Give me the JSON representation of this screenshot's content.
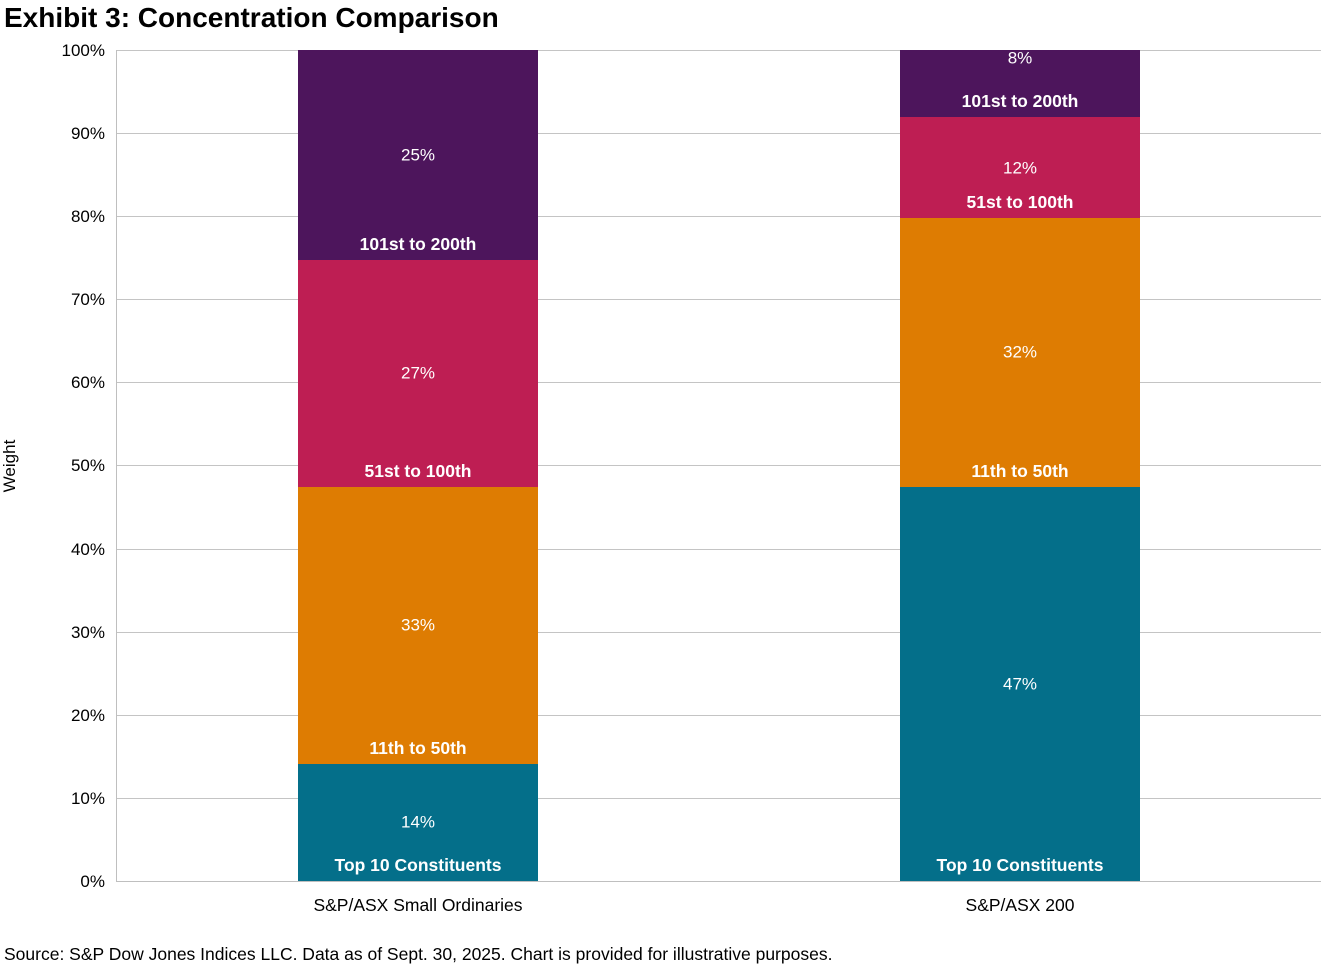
{
  "title": "Exhibit 3: Concentration Comparison",
  "source": "Source: S&P Dow Jones Indices LLC. Data as of Sept. 30, 2025. Chart is provided for illustrative purposes.",
  "chart_data": {
    "type": "bar",
    "stacked": true,
    "orientation": "vertical",
    "title": "Exhibit 3: Concentration Comparison",
    "xlabel": "",
    "ylabel": "Weight",
    "ylim": [
      0,
      100
    ],
    "yticks": [
      "0%",
      "10%",
      "20%",
      "30%",
      "40%",
      "50%",
      "60%",
      "70%",
      "80%",
      "90%",
      "100%"
    ],
    "grid": true,
    "legend": "none (labels inside segments)",
    "categories": [
      "S&P/ASX Small Ordinaries",
      "S&P/ASX 200"
    ],
    "series": [
      {
        "name": "Top 10 Constituents",
        "values": [
          14,
          47
        ],
        "value_labels": [
          "14%",
          "47%"
        ],
        "color": "#046F8A"
      },
      {
        "name": "11th to 50th",
        "values": [
          33,
          32
        ],
        "value_labels": [
          "33%",
          "32%"
        ],
        "color": "#DE7C02"
      },
      {
        "name": "51st to 100th",
        "values": [
          27,
          12
        ],
        "value_labels": [
          "27%",
          "12%"
        ],
        "color": "#BE1E53"
      },
      {
        "name": "101st to 200th",
        "values": [
          25,
          8
        ],
        "value_labels": [
          "25%",
          "8%"
        ],
        "color": "#4D155C"
      }
    ],
    "colors": {
      "gridline": "#C4C4C4",
      "axis_line": "#BFBFBF",
      "segment_label_text": "#FFFFFF",
      "title_text": "#000000"
    }
  }
}
